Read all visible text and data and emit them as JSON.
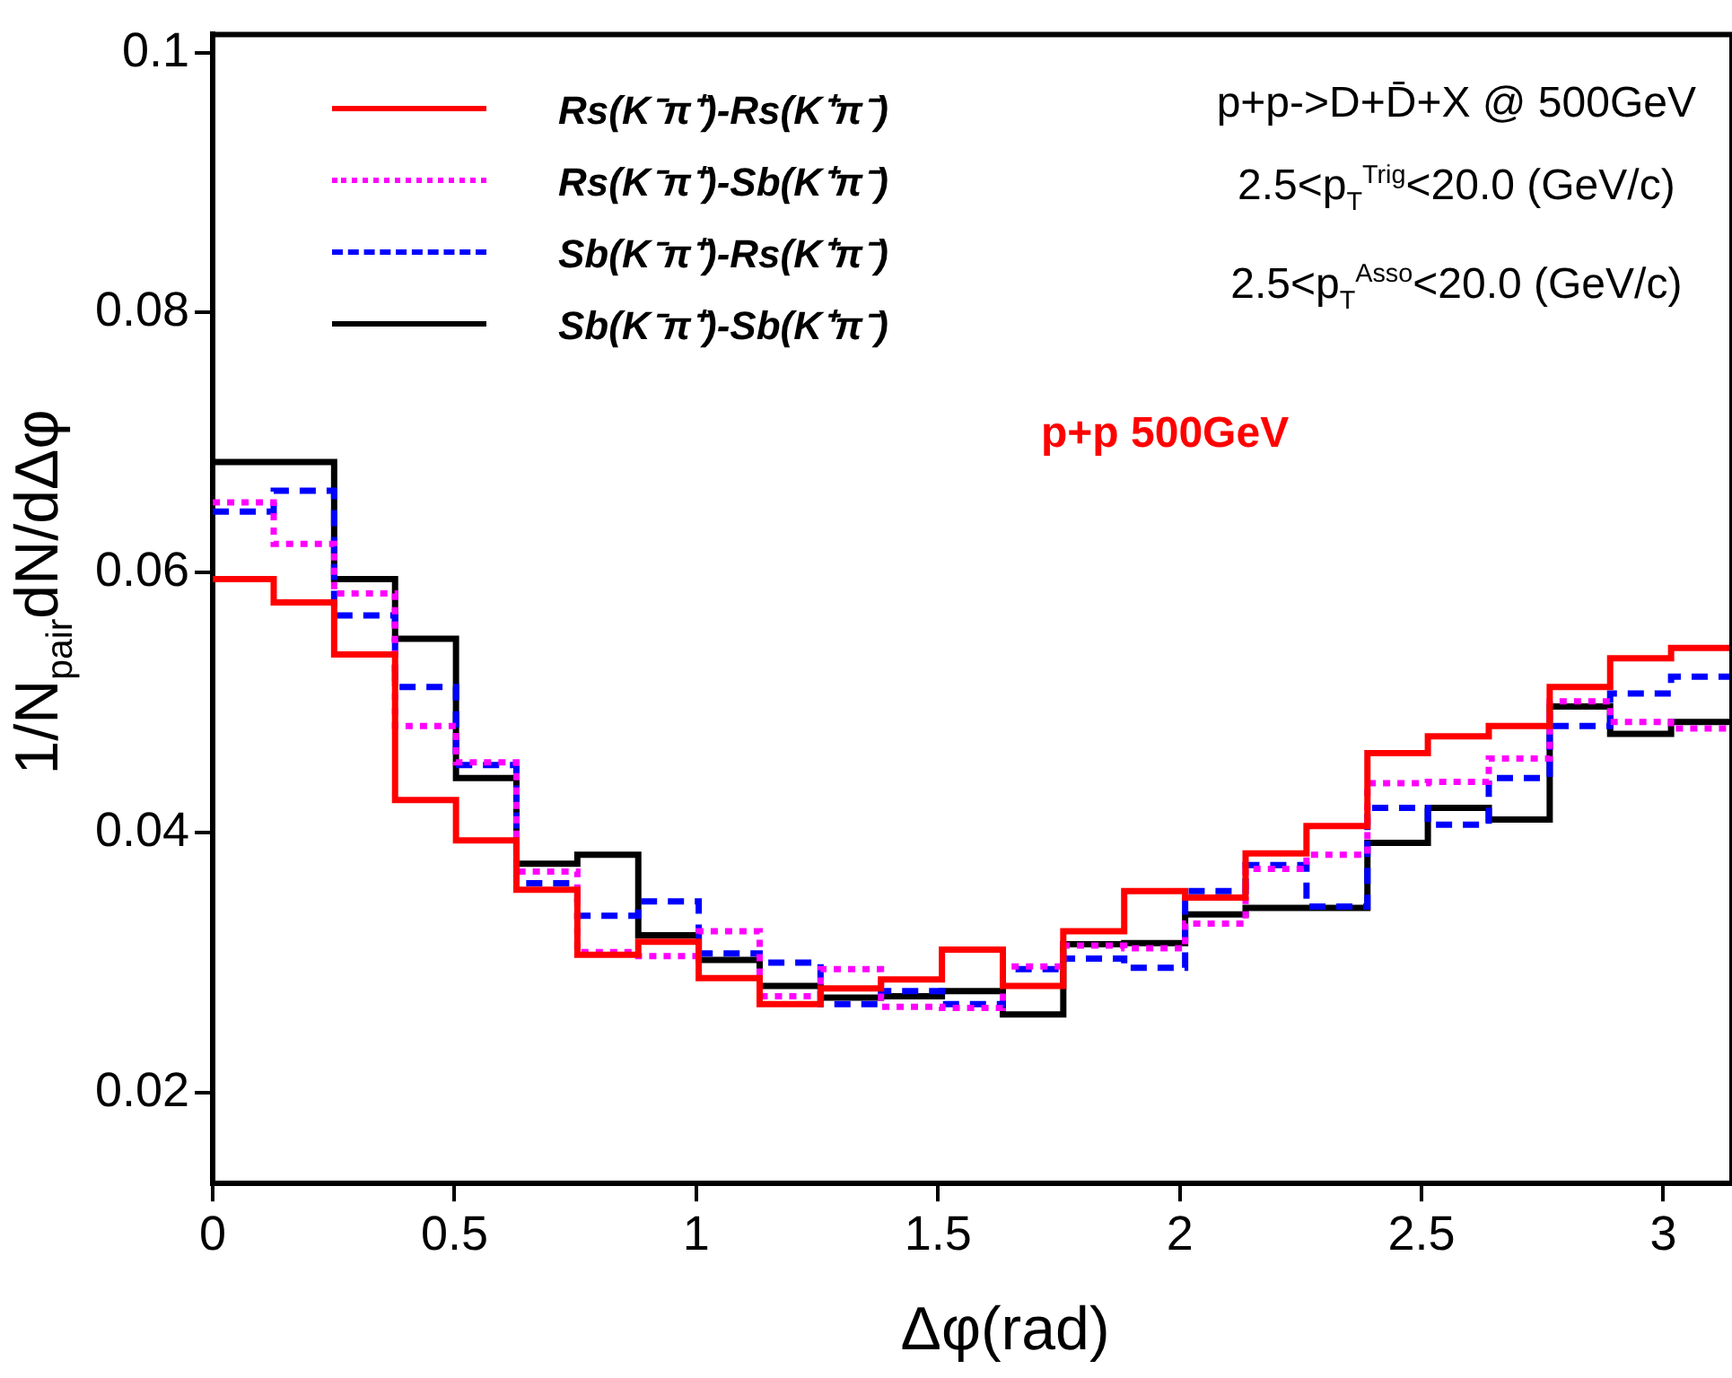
{
  "chart_data": {
    "type": "histogram",
    "xlabel": "Δφ(rad)",
    "ylabel": "1/N$_{pair}$dN/dΔφ",
    "legend": "top left",
    "grid": false,
    "bins": [
      0,
      0.126,
      0.251,
      0.377,
      0.503,
      0.628,
      0.754,
      0.88,
      1.005,
      1.131,
      1.257,
      1.382,
      1.508,
      1.634,
      1.759,
      1.885,
      2.011,
      2.136,
      2.262,
      2.388,
      2.513,
      2.639,
      2.765,
      2.89,
      3.016,
      3.142
    ],
    "series": [
      {
        "name": "Rs(K⁻π⁺)-Rs(K⁺π⁻)",
        "color": "#ff0000",
        "line_style": "solid",
        "values": [
          0.0595,
          0.0577,
          0.0537,
          0.0425,
          0.0394,
          0.0356,
          0.0306,
          0.0316,
          0.0288,
          0.0268,
          0.028,
          0.0287,
          0.031,
          0.0282,
          0.0324,
          0.0355,
          0.035,
          0.0384,
          0.0405,
          0.0461,
          0.0474,
          0.0482,
          0.0512,
          0.0534,
          0.0542
        ]
      },
      {
        "name": "Rs(K⁻π⁺)-Sb(K⁺π⁻)",
        "color": "#ff00ff",
        "line_style": "dotted",
        "values": [
          0.0654,
          0.0622,
          0.0584,
          0.0482,
          0.0454,
          0.037,
          0.0308,
          0.0305,
          0.0324,
          0.0274,
          0.0295,
          0.0266,
          0.0265,
          0.0297,
          0.0313,
          0.0311,
          0.033,
          0.0372,
          0.0383,
          0.0438,
          0.0439,
          0.0457,
          0.0501,
          0.0485,
          0.048
        ]
      },
      {
        "name": "Sb(K⁻π⁺)-Rs(K⁺π⁻)",
        "color": "#0000ff",
        "line_style": "dashed",
        "values": [
          0.0647,
          0.0663,
          0.0567,
          0.0512,
          0.0452,
          0.0361,
          0.0336,
          0.0347,
          0.0307,
          0.03,
          0.0268,
          0.0278,
          0.0268,
          0.0295,
          0.0303,
          0.0296,
          0.0355,
          0.0375,
          0.0343,
          0.0419,
          0.0406,
          0.0442,
          0.0482,
          0.0507,
          0.052
        ]
      },
      {
        "name": "Sb(K⁻π⁺)-Sb(K⁺π⁻)",
        "color": "#000000",
        "line_style": "solid",
        "values": [
          0.0685,
          0.0685,
          0.0595,
          0.0549,
          0.0442,
          0.0376,
          0.0383,
          0.0321,
          0.0302,
          0.0282,
          0.0273,
          0.0274,
          0.0278,
          0.026,
          0.0314,
          0.0315,
          0.0337,
          0.0342,
          0.0342,
          0.0392,
          0.0419,
          0.041,
          0.0497,
          0.0476,
          0.0485
        ]
      }
    ],
    "xlim": [
      0,
      3.142
    ],
    "xticks": [
      0,
      0.5,
      1,
      1.5,
      2,
      2.5,
      3
    ],
    "ylim": [
      0.013,
      0.1014
    ],
    "yticks": [
      0.02,
      0.04,
      0.06,
      0.08,
      0.1
    ],
    "annotations": [
      "p+p->D+D̄+X @ 500GeV",
      "2.5<p$_{T}$$^{Trig}$<20.0 (GeV/c)",
      "2.5<p$_{T}$$^{Asso}$<20.0 (GeV/c)",
      "p+p 500GeV"
    ]
  }
}
